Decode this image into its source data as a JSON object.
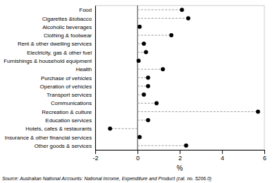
{
  "chart_data": {
    "type": "lollipop",
    "orientation": "horizontal",
    "categories": [
      "Food",
      "Cigarettes &tobacco",
      "Alcoholic beverages",
      "Clothing & footwear",
      "Rent & other dwelling services",
      "Electricity, gas & other fuel",
      "Furnishings & household equipment",
      "Health",
      "Purchase of vehicles",
      "Operation of vehicles",
      "Transport services",
      "Communications",
      "Recreation & culture",
      "Education services",
      "Hotels, cafes & restaurants",
      "Insurance & other financial services",
      "Other goods & services"
    ],
    "values": [
      2.1,
      2.4,
      0.1,
      1.6,
      0.3,
      0.4,
      0.05,
      1.2,
      0.5,
      0.5,
      0.3,
      0.9,
      5.7,
      0.5,
      -1.3,
      0.1,
      2.3
    ],
    "color": "#000000",
    "marker": "circle",
    "line_style": "dashed",
    "xlim": [
      -2,
      6
    ],
    "xticks": [
      -2,
      0,
      2,
      4,
      6
    ],
    "xlabel": "%",
    "grid": false,
    "annotations": [
      "Source: Australian National Accounts: National Income, Expenditure and Product (cat. no. 5206.0)"
    ]
  }
}
